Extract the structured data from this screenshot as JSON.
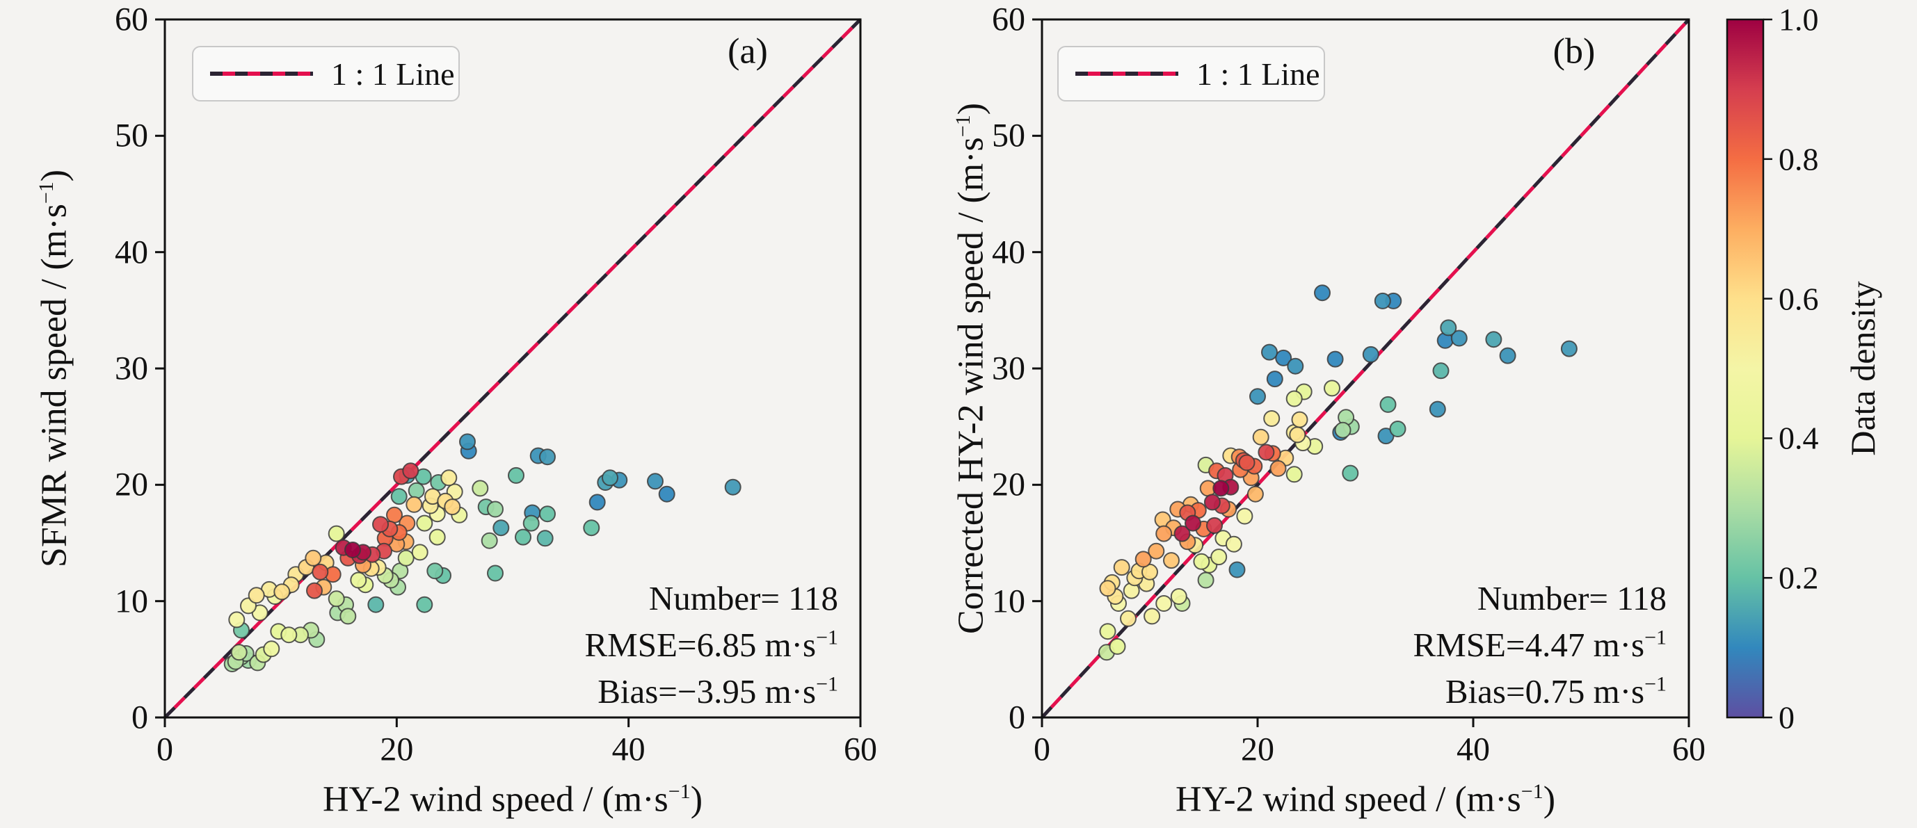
{
  "figure": {
    "background": "#f4f3f1",
    "spine_color": "#111111",
    "marker_edge": "#3b3b3b",
    "ref_line_colors": {
      "crimson": "#e4104e",
      "dark": "#2b2433"
    }
  },
  "legend": {
    "label": "1 : 1 Line"
  },
  "colorbar": {
    "title": "Data density",
    "ticks": [
      "1.0",
      "0.8",
      "0.6",
      "0.4",
      "0.2",
      "0"
    ],
    "tick_values": [
      1.0,
      0.8,
      0.6,
      0.4,
      0.2,
      0
    ],
    "range": [
      0,
      1
    ],
    "stops": [
      "#5e4fa2",
      "#3288bd",
      "#66c2a5",
      "#abdda4",
      "#e6f598",
      "#f4f5a6",
      "#fee08b",
      "#fdae61",
      "#f46d43",
      "#d53e4f",
      "#9e0142"
    ]
  },
  "chart_data": [
    {
      "id": "a",
      "type": "scatter",
      "label": "(a)",
      "xlabel": {
        "pre": "HY-2 wind speed / (m·s",
        "sup": "−1",
        "post": ")"
      },
      "ylabel": {
        "pre": "SFMR wind speed / (m·s",
        "sup": "−1",
        "post": ")"
      },
      "xlim": [
        0,
        60
      ],
      "ylim": [
        0,
        60
      ],
      "xticks": [
        0,
        20,
        40,
        60
      ],
      "yticks": [
        0,
        10,
        20,
        30,
        40,
        50,
        60
      ],
      "grid": false,
      "legend_position": "upper-left",
      "ref_line": {
        "from": [
          0,
          0
        ],
        "to": [
          60,
          60
        ]
      },
      "stats": {
        "lines": [
          {
            "pre": "Number= 118",
            "sup": ""
          },
          {
            "pre": "RMSE=6.85 m·s",
            "sup": "−1"
          },
          {
            "pre": "Bias=−3.95 m·s",
            "sup": "−1"
          }
        ]
      },
      "points": [
        [
          5.8,
          4.6,
          0.3
        ],
        [
          6.1,
          4.8,
          0.32
        ],
        [
          6.6,
          5.2,
          0.3
        ],
        [
          7.2,
          4.9,
          0.28
        ],
        [
          6.4,
          5.6,
          0.35
        ],
        [
          7.0,
          5.5,
          0.3
        ],
        [
          8.0,
          4.7,
          0.33
        ],
        [
          8.5,
          5.4,
          0.38
        ],
        [
          9.2,
          5.9,
          0.45
        ],
        [
          6.2,
          8.4,
          0.5
        ],
        [
          6.6,
          7.5,
          0.22
        ],
        [
          7.2,
          9.6,
          0.52
        ],
        [
          7.9,
          10.5,
          0.57
        ],
        [
          8.2,
          9.0,
          0.5
        ],
        [
          9.8,
          7.4,
          0.4
        ],
        [
          10.7,
          7.1,
          0.42
        ],
        [
          11.7,
          7.1,
          0.38
        ],
        [
          12.6,
          7.5,
          0.33
        ],
        [
          13.1,
          6.7,
          0.3
        ],
        [
          9.0,
          11.0,
          0.55
        ],
        [
          9.5,
          10.4,
          0.48
        ],
        [
          10.1,
          10.8,
          0.6
        ],
        [
          10.9,
          11.4,
          0.58
        ],
        [
          11.3,
          12.3,
          0.57
        ],
        [
          12.2,
          12.9,
          0.62
        ],
        [
          12.8,
          13.7,
          0.65
        ],
        [
          13.9,
          13.3,
          0.62
        ],
        [
          13.7,
          11.2,
          0.68
        ],
        [
          12.9,
          10.9,
          0.85
        ],
        [
          14.8,
          10.2,
          0.35
        ],
        [
          15.6,
          9.7,
          0.32
        ],
        [
          14.9,
          9.0,
          0.3
        ],
        [
          15.8,
          8.7,
          0.33
        ],
        [
          18.2,
          9.7,
          0.18
        ],
        [
          14.8,
          15.8,
          0.4
        ],
        [
          15.4,
          14.6,
          0.95
        ],
        [
          16.2,
          14.4,
          1.0
        ],
        [
          17.1,
          14.2,
          0.97
        ],
        [
          17.9,
          14.0,
          0.9
        ],
        [
          15.8,
          13.7,
          0.85
        ],
        [
          16.8,
          13.9,
          0.93
        ],
        [
          13.4,
          12.5,
          0.85
        ],
        [
          14.5,
          12.3,
          0.8
        ],
        [
          17.1,
          13.1,
          0.72
        ],
        [
          17.8,
          12.8,
          0.6
        ],
        [
          18.4,
          12.9,
          0.55
        ],
        [
          16.7,
          11.8,
          0.42
        ],
        [
          17.3,
          11.4,
          0.4
        ],
        [
          18.6,
          16.6,
          0.88
        ],
        [
          19.4,
          16.2,
          0.85
        ],
        [
          20.2,
          15.9,
          0.8
        ],
        [
          20.9,
          16.7,
          0.75
        ],
        [
          19.0,
          15.4,
          0.82
        ],
        [
          20.0,
          14.9,
          0.72
        ],
        [
          20.8,
          15.1,
          0.7
        ],
        [
          20.4,
          20.7,
          0.88
        ],
        [
          21.2,
          21.2,
          0.9
        ],
        [
          20.9,
          20.8,
          0.15
        ],
        [
          22.3,
          20.7,
          0.2
        ],
        [
          23.6,
          20.2,
          0.22
        ],
        [
          21.7,
          19.5,
          0.25
        ],
        [
          23.1,
          19.0,
          0.58
        ],
        [
          24.2,
          18.6,
          0.6
        ],
        [
          24.8,
          18.1,
          0.62
        ],
        [
          22.9,
          18.2,
          0.55
        ],
        [
          23.5,
          17.5,
          0.5
        ],
        [
          25.4,
          17.4,
          0.45
        ],
        [
          22.4,
          16.7,
          0.4
        ],
        [
          23.5,
          15.5,
          0.42
        ],
        [
          20.8,
          13.7,
          0.38
        ],
        [
          27.2,
          19.7,
          0.35
        ],
        [
          26.1,
          23.7,
          0.12
        ],
        [
          30.3,
          20.8,
          0.2
        ],
        [
          27.7,
          18.1,
          0.22
        ],
        [
          28.5,
          17.9,
          0.28
        ],
        [
          31.7,
          17.6,
          0.12
        ],
        [
          33.0,
          17.5,
          0.2
        ],
        [
          20.2,
          19.0,
          0.2
        ],
        [
          26.2,
          22.9,
          0.1
        ],
        [
          32.2,
          22.5,
          0.12
        ],
        [
          33.0,
          22.4,
          0.13
        ],
        [
          38.4,
          20.6,
          0.15
        ],
        [
          39.2,
          20.4,
          0.12
        ],
        [
          38.0,
          20.2,
          0.14
        ],
        [
          37.3,
          18.5,
          0.1
        ],
        [
          42.3,
          20.3,
          0.12
        ],
        [
          43.3,
          19.2,
          0.1
        ],
        [
          49.0,
          19.8,
          0.13
        ],
        [
          30.9,
          15.5,
          0.2
        ],
        [
          31.6,
          16.7,
          0.22
        ],
        [
          32.8,
          15.4,
          0.18
        ],
        [
          36.8,
          16.3,
          0.2
        ],
        [
          28.0,
          15.2,
          0.3
        ],
        [
          28.5,
          12.4,
          0.2
        ],
        [
          29.0,
          16.3,
          0.15
        ],
        [
          22.4,
          9.7,
          0.2
        ],
        [
          19.5,
          11.8,
          0.33
        ],
        [
          20.1,
          11.2,
          0.3
        ],
        [
          19.0,
          12.2,
          0.35
        ],
        [
          20.3,
          12.6,
          0.32
        ],
        [
          24.0,
          12.2,
          0.2
        ],
        [
          23.3,
          12.6,
          0.22
        ],
        [
          19.8,
          17.4,
          0.78
        ],
        [
          18.9,
          14.3,
          0.88
        ],
        [
          21.5,
          18.3,
          0.65
        ],
        [
          22.0,
          14.2,
          0.45
        ],
        [
          24.5,
          20.6,
          0.55
        ],
        [
          25.0,
          19.4,
          0.52
        ]
      ]
    },
    {
      "id": "b",
      "type": "scatter",
      "label": "(b)",
      "xlabel": {
        "pre": "HY-2 wind speed / (m·s",
        "sup": "−1",
        "post": ")"
      },
      "ylabel": {
        "pre": "Corrected HY-2 wind speed / (m·s",
        "sup": "−1",
        "post": ")"
      },
      "xlim": [
        0,
        60
      ],
      "ylim": [
        0,
        60
      ],
      "xticks": [
        0,
        20,
        40,
        60
      ],
      "yticks": [
        0,
        10,
        20,
        30,
        40,
        50,
        60
      ],
      "grid": false,
      "legend_position": "upper-left",
      "ref_line": {
        "from": [
          0,
          0
        ],
        "to": [
          60,
          60
        ]
      },
      "stats": {
        "lines": [
          {
            "pre": "Number= 118",
            "sup": ""
          },
          {
            "pre": "RMSE=4.47 m·s",
            "sup": "−1"
          },
          {
            "pre": "Bias=0.75 m·s",
            "sup": "−1"
          }
        ]
      },
      "points": [
        [
          6.0,
          5.6,
          0.35
        ],
        [
          7.0,
          6.1,
          0.4
        ],
        [
          6.1,
          7.4,
          0.42
        ],
        [
          6.5,
          11.6,
          0.6
        ],
        [
          6.1,
          11.1,
          0.62
        ],
        [
          6.8,
          10.4,
          0.58
        ],
        [
          7.1,
          9.8,
          0.5
        ],
        [
          8.0,
          8.5,
          0.55
        ],
        [
          10.2,
          8.7,
          0.52
        ],
        [
          11.3,
          9.8,
          0.5
        ],
        [
          12.7,
          10.4,
          0.48
        ],
        [
          13.0,
          9.8,
          0.35
        ],
        [
          7.4,
          12.9,
          0.62
        ],
        [
          9.0,
          12.6,
          0.6
        ],
        [
          9.4,
          13.6,
          0.72
        ],
        [
          10.6,
          14.3,
          0.7
        ],
        [
          11.2,
          17.0,
          0.65
        ],
        [
          11.3,
          15.8,
          0.72
        ],
        [
          13.0,
          15.8,
          0.95
        ],
        [
          13.5,
          15.1,
          0.72
        ],
        [
          12.6,
          17.9,
          0.72
        ],
        [
          13.5,
          17.6,
          0.85
        ],
        [
          14.0,
          16.7,
          0.97
        ],
        [
          15.8,
          18.5,
          0.95
        ],
        [
          16.7,
          18.2,
          0.88
        ],
        [
          17.3,
          17.9,
          0.72
        ],
        [
          18.8,
          17.3,
          0.5
        ],
        [
          16.8,
          15.4,
          0.48
        ],
        [
          14.8,
          13.4,
          0.42
        ],
        [
          15.5,
          13.1,
          0.4
        ],
        [
          15.2,
          11.8,
          0.32
        ],
        [
          18.1,
          12.7,
          0.12
        ],
        [
          15.2,
          21.7,
          0.38
        ],
        [
          15.4,
          19.7,
          0.72
        ],
        [
          16.6,
          19.7,
          1.0
        ],
        [
          17.5,
          19.8,
          0.97
        ],
        [
          17.5,
          22.5,
          0.6
        ],
        [
          18.7,
          22.1,
          0.85
        ],
        [
          20.8,
          22.8,
          0.88
        ],
        [
          21.4,
          22.7,
          0.8
        ],
        [
          18.4,
          21.3,
          0.78
        ],
        [
          19.4,
          20.6,
          0.72
        ],
        [
          18.3,
          22.4,
          0.75
        ],
        [
          19.0,
          21.9,
          0.85
        ],
        [
          19.7,
          21.6,
          0.82
        ],
        [
          20.3,
          24.1,
          0.62
        ],
        [
          23.7,
          24.3,
          0.58
        ],
        [
          23.4,
          24.5,
          0.55
        ],
        [
          24.2,
          23.6,
          0.5
        ],
        [
          25.3,
          23.3,
          0.42
        ],
        [
          23.4,
          20.9,
          0.4
        ],
        [
          21.3,
          25.7,
          0.55
        ],
        [
          23.9,
          25.6,
          0.58
        ],
        [
          26.9,
          28.3,
          0.42
        ],
        [
          24.3,
          28.0,
          0.4
        ],
        [
          23.4,
          27.4,
          0.42
        ],
        [
          20.0,
          27.6,
          0.12
        ],
        [
          21.6,
          29.1,
          0.1
        ],
        [
          21.1,
          31.4,
          0.12
        ],
        [
          22.4,
          30.9,
          0.1
        ],
        [
          23.5,
          30.2,
          0.12
        ],
        [
          27.2,
          30.8,
          0.1
        ],
        [
          30.5,
          31.2,
          0.12
        ],
        [
          26.0,
          36.5,
          0.1
        ],
        [
          31.6,
          35.8,
          0.12
        ],
        [
          32.6,
          35.8,
          0.1
        ],
        [
          37.7,
          33.5,
          0.15
        ],
        [
          37.4,
          32.4,
          0.1
        ],
        [
          38.7,
          32.6,
          0.12
        ],
        [
          41.9,
          32.5,
          0.15
        ],
        [
          43.2,
          31.1,
          0.12
        ],
        [
          48.9,
          31.7,
          0.13
        ],
        [
          37.0,
          29.8,
          0.18
        ],
        [
          36.7,
          26.5,
          0.12
        ],
        [
          32.1,
          26.9,
          0.2
        ],
        [
          28.2,
          25.8,
          0.3
        ],
        [
          28.7,
          25.0,
          0.28
        ],
        [
          27.9,
          24.7,
          0.3
        ],
        [
          31.9,
          24.2,
          0.12
        ],
        [
          33.0,
          24.8,
          0.2
        ],
        [
          28.6,
          21.0,
          0.2
        ],
        [
          27.7,
          24.5,
          0.1
        ],
        [
          12.0,
          13.5,
          0.65
        ],
        [
          8.6,
          12.0,
          0.58
        ],
        [
          10.0,
          12.5,
          0.6
        ],
        [
          16.0,
          16.5,
          0.9
        ],
        [
          14.5,
          17.8,
          0.8
        ],
        [
          13.8,
          18.3,
          0.68
        ],
        [
          12.2,
          16.3,
          0.7
        ],
        [
          9.7,
          11.5,
          0.55
        ],
        [
          8.3,
          10.9,
          0.52
        ],
        [
          17.0,
          20.8,
          0.9
        ],
        [
          16.2,
          21.2,
          0.82
        ],
        [
          15.0,
          16.2,
          0.78
        ],
        [
          14.2,
          14.8,
          0.55
        ],
        [
          16.4,
          13.8,
          0.45
        ],
        [
          17.8,
          14.9,
          0.5
        ],
        [
          19.8,
          19.2,
          0.68
        ],
        [
          21.9,
          21.4,
          0.72
        ],
        [
          22.6,
          22.3,
          0.62
        ]
      ]
    }
  ]
}
